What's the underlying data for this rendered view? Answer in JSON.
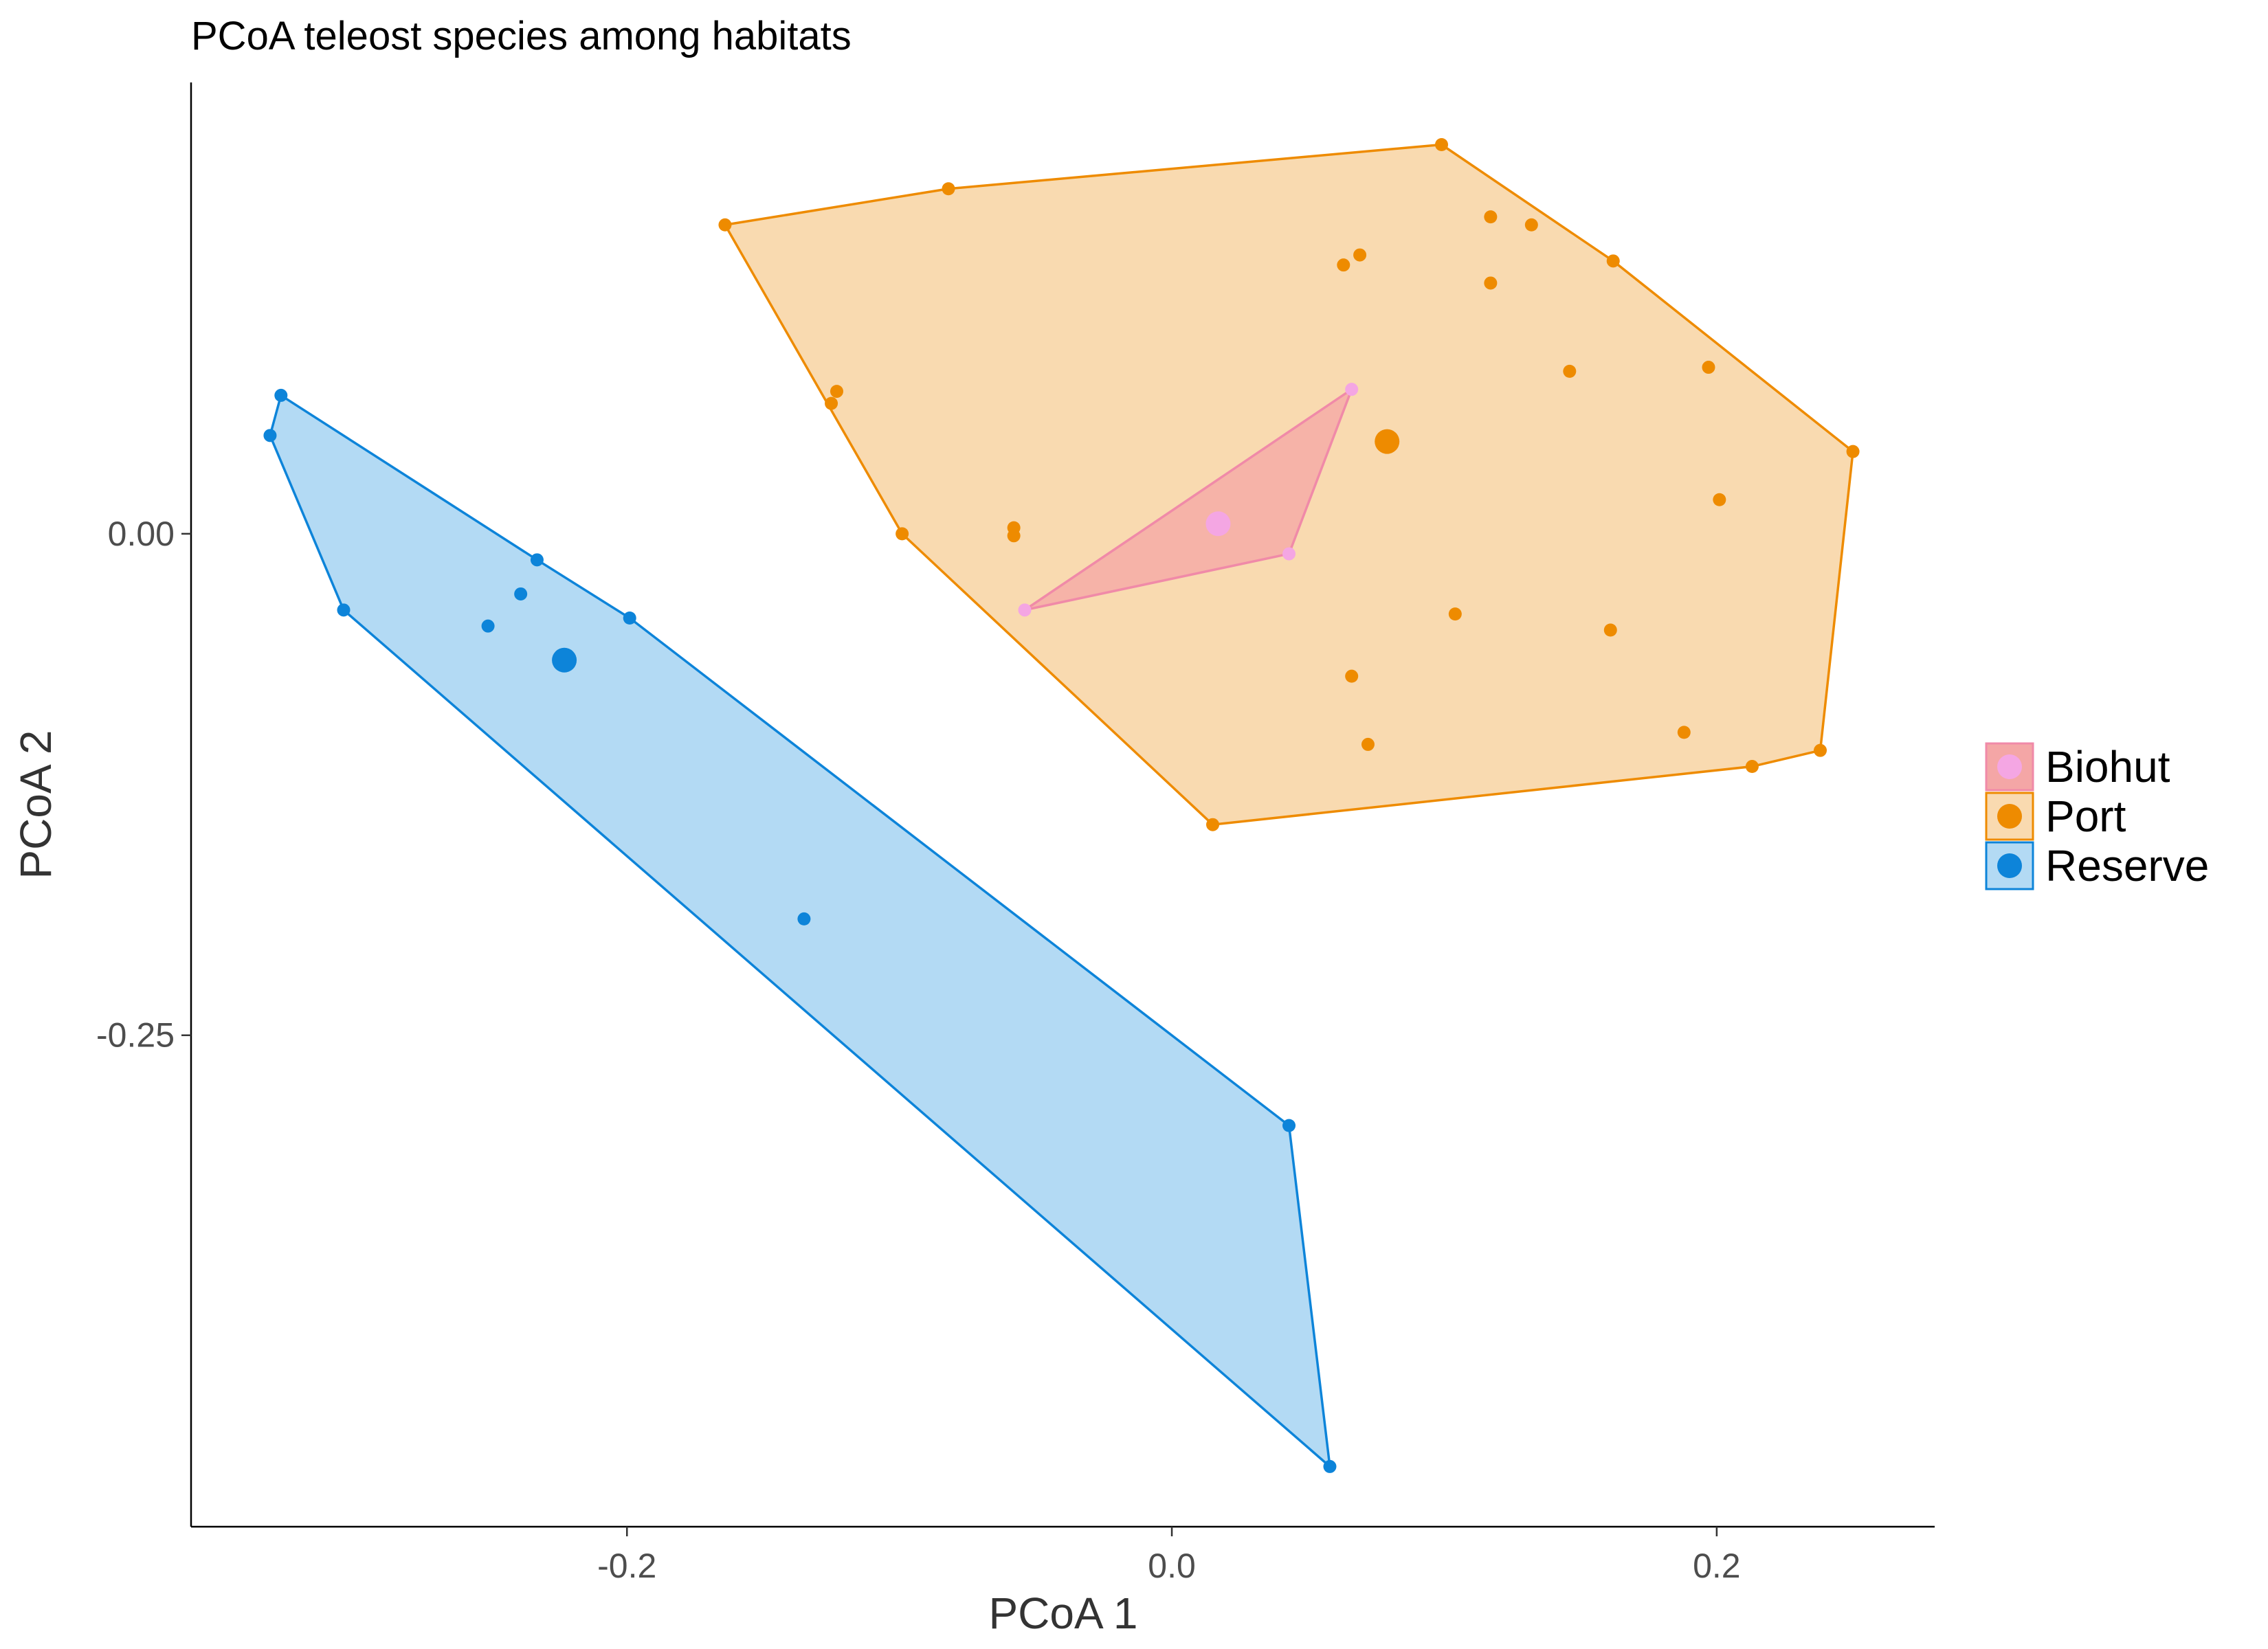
{
  "chart_data": {
    "type": "scatter",
    "title": "PCoA teleost species among habitats",
    "xlabel": "PCoA 1",
    "ylabel": "PCoA 2",
    "xlim": [
      -0.36,
      0.28
    ],
    "ylim": [
      -0.495,
      0.225
    ],
    "x_ticks": [
      -0.2,
      0.0,
      0.2
    ],
    "x_tick_labels": [
      "-0.2",
      "0.0",
      "0.2"
    ],
    "y_ticks": [
      0.0,
      -0.25
    ],
    "y_tick_labels": [
      "0.00",
      "-0.25"
    ],
    "grid": false,
    "legend_position": "right",
    "series": [
      {
        "name": "Biohut",
        "color": "#F4A6E3",
        "fill": "#F4A6A6",
        "points": [
          [
            0.066,
            0.072
          ],
          [
            0.043,
            -0.01
          ],
          [
            -0.054,
            -0.038
          ]
        ],
        "hull": [
          [
            0.066,
            0.072
          ],
          [
            0.043,
            -0.01
          ],
          [
            -0.054,
            -0.038
          ]
        ],
        "centroid": [
          0.017,
          0.005
        ]
      },
      {
        "name": "Port",
        "color": "#EE8B00",
        "fill": "#F9DAB0",
        "points": [
          [
            -0.164,
            0.154
          ],
          [
            -0.082,
            0.172
          ],
          [
            0.099,
            0.194
          ],
          [
            0.117,
            0.158
          ],
          [
            0.132,
            0.154
          ],
          [
            0.162,
            0.136
          ],
          [
            0.063,
            0.134
          ],
          [
            0.069,
            0.139
          ],
          [
            0.117,
            0.125
          ],
          [
            -0.123,
            0.071
          ],
          [
            -0.125,
            0.065
          ],
          [
            0.146,
            0.081
          ],
          [
            0.197,
            0.083
          ],
          [
            0.25,
            0.041
          ],
          [
            0.201,
            0.017
          ],
          [
            -0.099,
            0.0
          ],
          [
            -0.058,
            0.003
          ],
          [
            -0.058,
            -0.001
          ],
          [
            0.104,
            -0.04
          ],
          [
            0.161,
            -0.048
          ],
          [
            0.066,
            -0.071
          ],
          [
            0.188,
            -0.099
          ],
          [
            0.072,
            -0.105
          ],
          [
            0.213,
            -0.116
          ],
          [
            0.238,
            -0.108
          ],
          [
            0.015,
            -0.145
          ]
        ],
        "hull": [
          [
            -0.164,
            0.154
          ],
          [
            -0.082,
            0.172
          ],
          [
            0.099,
            0.194
          ],
          [
            0.162,
            0.136
          ],
          [
            0.25,
            0.041
          ],
          [
            0.238,
            -0.108
          ],
          [
            0.213,
            -0.116
          ],
          [
            0.015,
            -0.145
          ],
          [
            -0.099,
            0.0
          ]
        ],
        "centroid": [
          0.079,
          0.046
        ]
      },
      {
        "name": "Reserve",
        "color": "#0D84D9",
        "fill": "#B3DAF4",
        "points": [
          [
            -0.327,
            0.069
          ],
          [
            -0.331,
            0.049
          ],
          [
            -0.304,
            -0.038
          ],
          [
            -0.233,
            -0.013
          ],
          [
            -0.239,
            -0.03
          ],
          [
            -0.251,
            -0.046
          ],
          [
            -0.199,
            -0.042
          ],
          [
            -0.135,
            -0.192
          ],
          [
            0.043,
            -0.295
          ],
          [
            0.058,
            -0.465
          ]
        ],
        "hull": [
          [
            -0.327,
            0.069
          ],
          [
            -0.233,
            -0.013
          ],
          [
            -0.199,
            -0.042
          ],
          [
            0.043,
            -0.295
          ],
          [
            0.058,
            -0.465
          ],
          [
            -0.304,
            -0.038
          ],
          [
            -0.331,
            0.049
          ]
        ],
        "centroid": [
          -0.223,
          -0.063
        ]
      }
    ]
  }
}
